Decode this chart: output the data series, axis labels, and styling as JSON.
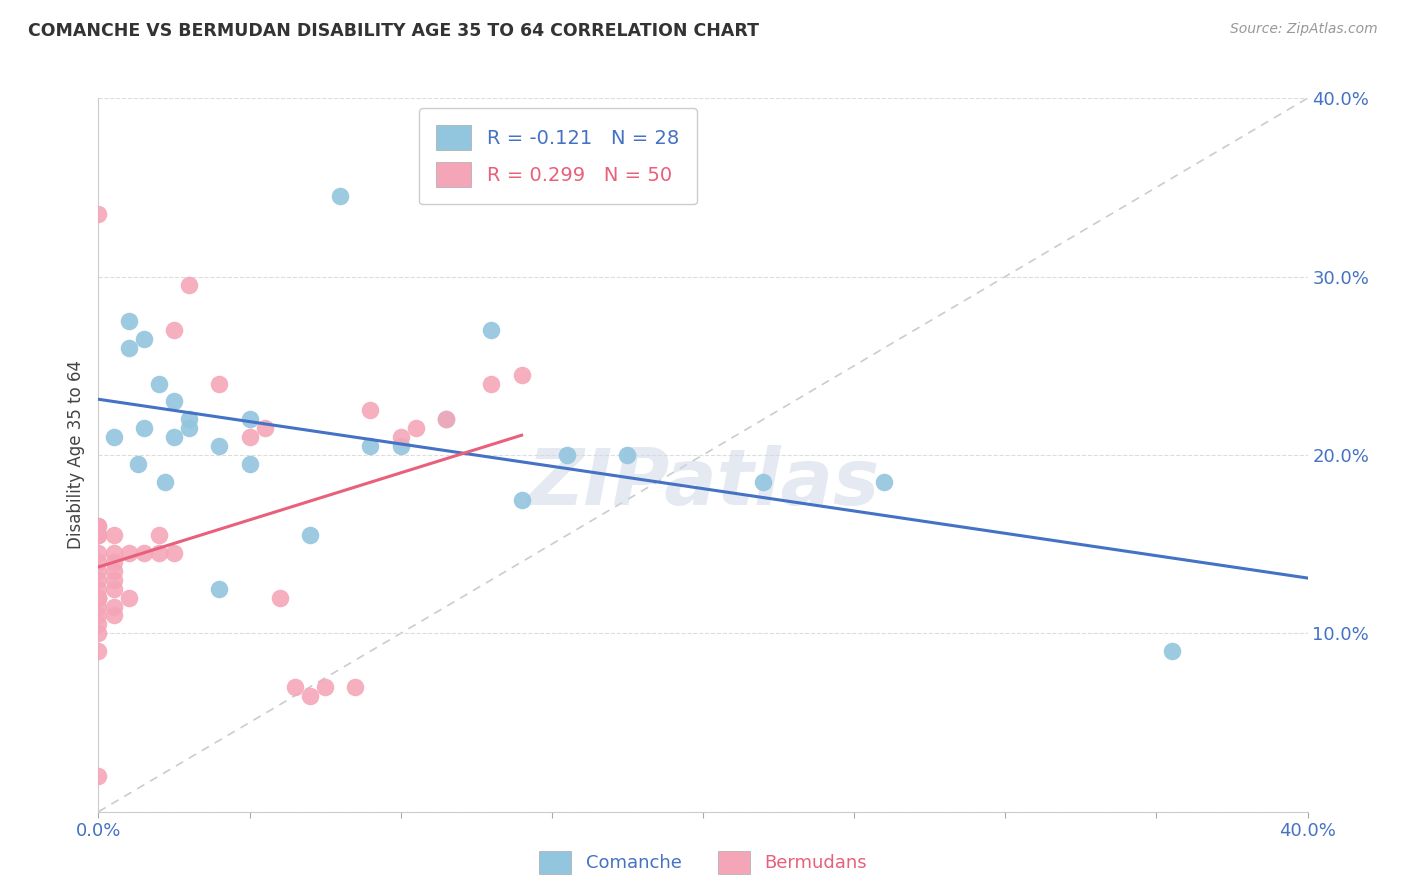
{
  "title": "COMANCHE VS BERMUDAN DISABILITY AGE 35 TO 64 CORRELATION CHART",
  "source": "Source: ZipAtlas.com",
  "ylabel": "Disability Age 35 to 64",
  "xlim": [
    0.0,
    0.4
  ],
  "ylim": [
    0.0,
    0.4
  ],
  "xticks": [
    0.0,
    0.05,
    0.1,
    0.15,
    0.2,
    0.25,
    0.3,
    0.35,
    0.4
  ],
  "yticks": [
    0.0,
    0.1,
    0.2,
    0.3,
    0.4
  ],
  "legend_R_comanche": "-0.121",
  "legend_N_comanche": "28",
  "legend_R_bermudan": "0.299",
  "legend_N_bermudan": "50",
  "comanche_color": "#92c5de",
  "bermudan_color": "#f4a6b8",
  "comanche_line_color": "#4472c4",
  "bermudan_line_color": "#e8607a",
  "diagonal_color": "#cccccc",
  "watermark": "ZIPatlas",
  "comanche_x": [
    0.005,
    0.01,
    0.01,
    0.013,
    0.015,
    0.015,
    0.02,
    0.022,
    0.025,
    0.025,
    0.03,
    0.03,
    0.04,
    0.04,
    0.05,
    0.05,
    0.07,
    0.08,
    0.09,
    0.1,
    0.115,
    0.13,
    0.155,
    0.175,
    0.22,
    0.26,
    0.355,
    0.14
  ],
  "comanche_y": [
    0.21,
    0.275,
    0.26,
    0.195,
    0.215,
    0.265,
    0.24,
    0.185,
    0.23,
    0.21,
    0.215,
    0.22,
    0.205,
    0.125,
    0.22,
    0.195,
    0.155,
    0.345,
    0.205,
    0.205,
    0.22,
    0.27,
    0.2,
    0.2,
    0.185,
    0.185,
    0.09,
    0.175
  ],
  "bermudan_x": [
    0.0,
    0.0,
    0.0,
    0.0,
    0.0,
    0.0,
    0.0,
    0.0,
    0.0,
    0.0,
    0.0,
    0.0,
    0.0,
    0.0,
    0.0,
    0.0,
    0.0,
    0.0,
    0.0,
    0.0,
    0.005,
    0.005,
    0.005,
    0.005,
    0.005,
    0.005,
    0.005,
    0.005,
    0.01,
    0.01,
    0.015,
    0.02,
    0.02,
    0.025,
    0.025,
    0.03,
    0.04,
    0.05,
    0.055,
    0.06,
    0.065,
    0.07,
    0.075,
    0.085,
    0.09,
    0.1,
    0.105,
    0.115,
    0.13,
    0.14
  ],
  "bermudan_y": [
    0.335,
    0.155,
    0.155,
    0.16,
    0.16,
    0.155,
    0.145,
    0.14,
    0.135,
    0.13,
    0.125,
    0.12,
    0.12,
    0.12,
    0.115,
    0.11,
    0.105,
    0.1,
    0.09,
    0.02,
    0.155,
    0.145,
    0.14,
    0.135,
    0.13,
    0.125,
    0.115,
    0.11,
    0.145,
    0.12,
    0.145,
    0.145,
    0.155,
    0.145,
    0.27,
    0.295,
    0.24,
    0.21,
    0.215,
    0.12,
    0.07,
    0.065,
    0.07,
    0.07,
    0.225,
    0.21,
    0.215,
    0.22,
    0.24,
    0.245
  ]
}
